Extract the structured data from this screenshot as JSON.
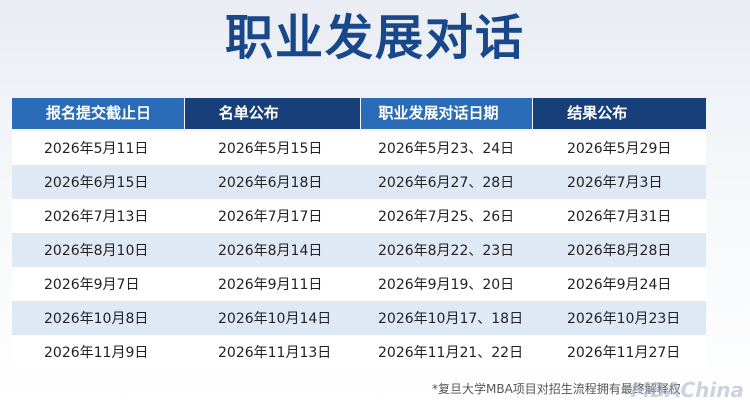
{
  "title": "职业发展对话",
  "table": {
    "headers": [
      "报名提交截止日",
      "名单公布",
      "职业发展对话日期",
      "结果公布"
    ],
    "rows": [
      [
        "2026年5月11日",
        "2026年5月15日",
        "2026年5月23、24日",
        "2026年5月29日"
      ],
      [
        "2026年6月15日",
        "2026年6月18日",
        "2026年6月27、28日",
        "2026年7月3日"
      ],
      [
        "2026年7月13日",
        "2026年7月17日",
        "2026年7月25、26日",
        "2026年7月31日"
      ],
      [
        "2026年8月10日",
        "2026年8月14日",
        "2026年8月22、23日",
        "2026年8月28日"
      ],
      [
        "2026年9月7日",
        "2026年9月11日",
        "2026年9月19、20日",
        "2026年9月24日"
      ],
      [
        "2026年10月8日",
        "2026年10月14日",
        "2026年10月17、18日",
        "2026年10月23日"
      ],
      [
        "2026年11月9日",
        "2026年11月13日",
        "2026年11月21、22日",
        "2026年11月27日"
      ]
    ]
  },
  "footnote": "*复旦大学MBA项目对招生流程拥有最终解释权",
  "watermark": "MBAChina",
  "colors": {
    "title": "#18488a",
    "header_light": "#2a6cb7",
    "header_dark": "#173f79",
    "row_alt": "#dfe9f5"
  }
}
